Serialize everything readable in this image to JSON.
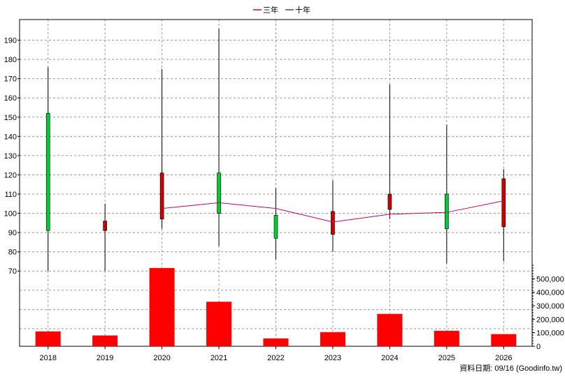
{
  "chart_data": {
    "type": "candlestick",
    "categories": [
      "2018",
      "2019",
      "2020",
      "2021",
      "2022",
      "2023",
      "2024",
      "2025",
      "2026"
    ],
    "candles": [
      {
        "open": 91,
        "high": 176,
        "low": 70,
        "close": 152
      },
      {
        "open": 96,
        "high": 105,
        "low": 70,
        "close": 91
      },
      {
        "open": 121,
        "high": 175,
        "low": 92,
        "close": 97
      },
      {
        "open": 100,
        "high": 196,
        "low": 83,
        "close": 121
      },
      {
        "open": 87,
        "high": 113,
        "low": 76,
        "close": 99
      },
      {
        "open": 101,
        "high": 117,
        "low": 80,
        "close": 89
      },
      {
        "open": 110,
        "high": 167,
        "low": 97,
        "close": 102
      },
      {
        "open": 92,
        "high": 146,
        "low": 74,
        "close": 110
      },
      {
        "open": 118,
        "high": 123,
        "low": 75,
        "close": 93
      }
    ],
    "series": [
      {
        "name": "三年",
        "color": "#cc0066",
        "values": [
          null,
          null,
          102.5,
          105.5,
          102.5,
          95.5,
          99.5,
          100.5,
          106.5
        ]
      },
      {
        "name": "十年",
        "color": "#663399",
        "values": [
          null,
          null,
          null,
          null,
          null,
          null,
          null,
          null,
          null
        ]
      }
    ],
    "volume": [
      110000,
      80000,
      580000,
      330000,
      58000,
      105000,
      240000,
      115000,
      90000
    ],
    "price_ylim": [
      65,
      200
    ],
    "price_ticks": [
      70,
      80,
      90,
      100,
      110,
      120,
      130,
      140,
      150,
      160,
      170,
      180,
      190
    ],
    "volume_ylim": [
      0,
      600000
    ],
    "volume_ticks": [
      "0",
      "100,000",
      "200,000",
      "300,000",
      "400,000",
      "500,000"
    ],
    "legend_position": "top-center",
    "grid": true,
    "colors": {
      "up": "#00cc33",
      "down": "#cc0000",
      "volume": "#ff0000",
      "wick": "#000000"
    }
  },
  "footer": {
    "source_text": "資料日期: 09/16  (Goodinfo.tw)"
  }
}
